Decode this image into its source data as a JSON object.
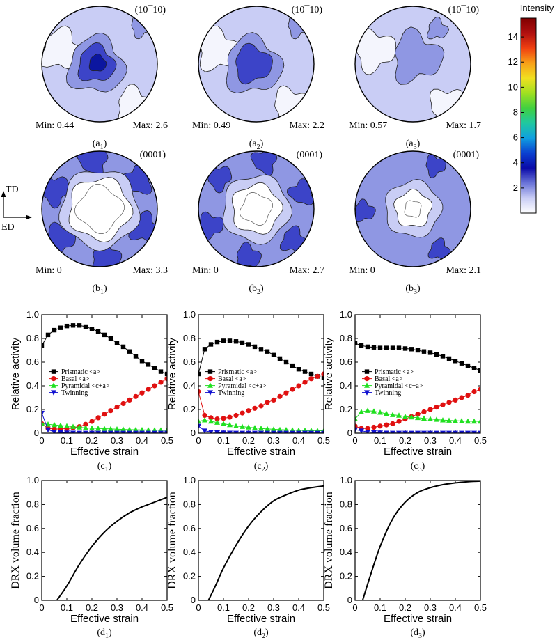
{
  "pole_figures": [
    {
      "label": "a",
      "sub": "1",
      "plane": "(10¯10)",
      "min": "Min: 0.44",
      "max": "Max: 2.6"
    },
    {
      "label": "a",
      "sub": "2",
      "plane": "(10¯10)",
      "min": "Min: 0.49",
      "max": "Max: 2.2"
    },
    {
      "label": "a",
      "sub": "3",
      "plane": "(10¯10)",
      "min": "Min: 0.57",
      "max": "Max: 1.7"
    },
    {
      "label": "b",
      "sub": "1",
      "plane": "(0001)",
      "min": "Min: 0",
      "max": "Max: 3.3"
    },
    {
      "label": "b",
      "sub": "2",
      "plane": "(0001)",
      "min": "Min: 0",
      "max": "Max: 2.7"
    },
    {
      "label": "b",
      "sub": "3",
      "plane": "(0001)",
      "min": "Min: 0",
      "max": "Max: 2.1"
    }
  ],
  "axes_indicator": {
    "td": "TD",
    "ed": "ED"
  },
  "colorbar": {
    "title": "Intensity",
    "ticks": [
      2,
      4,
      6,
      8,
      10,
      12,
      14
    ],
    "range": [
      0,
      15.5
    ],
    "colors": [
      "#ffffff",
      "#c9cdf5",
      "#6a74d8",
      "#0a0aa8",
      "#0a40d0",
      "#10a0e0",
      "#20c8a0",
      "#40d040",
      "#a0e020",
      "#f0e020",
      "#f8a018",
      "#f04010",
      "#b01010",
      "#800000"
    ]
  },
  "chart_data": [
    {
      "type": "line",
      "label": "c",
      "sub": "1",
      "xlabel": "Effective strain",
      "ylabel": "Relative activity",
      "xlim": [
        0,
        0.5
      ],
      "ylim": [
        0,
        1.0
      ],
      "xticks": [
        0,
        0.1,
        0.2,
        0.3,
        0.4,
        0.5
      ],
      "yticks": [
        0,
        0.2,
        0.4,
        0.6,
        0.8,
        1.0
      ],
      "x": [
        0,
        0.025,
        0.05,
        0.075,
        0.1,
        0.125,
        0.15,
        0.175,
        0.2,
        0.225,
        0.25,
        0.275,
        0.3,
        0.325,
        0.35,
        0.375,
        0.4,
        0.425,
        0.45,
        0.475,
        0.5
      ],
      "series": [
        {
          "name": "Prismatic <a>",
          "color": "#000000",
          "marker": "square",
          "values": [
            0.74,
            0.83,
            0.87,
            0.89,
            0.905,
            0.91,
            0.91,
            0.9,
            0.88,
            0.86,
            0.83,
            0.8,
            0.76,
            0.73,
            0.69,
            0.65,
            0.61,
            0.58,
            0.55,
            0.52,
            0.5
          ]
        },
        {
          "name": "Basal <a>",
          "color": "#e01010",
          "marker": "circle",
          "values": [
            0.08,
            0.04,
            0.035,
            0.035,
            0.04,
            0.045,
            0.055,
            0.075,
            0.1,
            0.13,
            0.16,
            0.19,
            0.22,
            0.25,
            0.28,
            0.31,
            0.34,
            0.37,
            0.4,
            0.43,
            0.46
          ]
        },
        {
          "name": "Pyramidal <c+a>",
          "color": "#20e020",
          "marker": "triangle-up",
          "values": [
            0.08,
            0.075,
            0.07,
            0.065,
            0.06,
            0.055,
            0.05,
            0.045,
            0.042,
            0.04,
            0.038,
            0.036,
            0.034,
            0.032,
            0.03,
            0.029,
            0.028,
            0.027,
            0.026,
            0.025,
            0.025
          ]
        },
        {
          "name": "Twinning",
          "color": "#1010d0",
          "marker": "triangle-down",
          "values": [
            0.17,
            0.03,
            0.01,
            0.005,
            0.003,
            0.002,
            0.001,
            0.001,
            0.001,
            0.001,
            0.001,
            0.001,
            0.001,
            0.001,
            0.001,
            0.001,
            0.001,
            0.001,
            0.001,
            0.001,
            0.001
          ]
        }
      ]
    },
    {
      "type": "line",
      "label": "c",
      "sub": "2",
      "xlabel": "Effective strain",
      "ylabel": "Relative activity",
      "xlim": [
        0,
        0.5
      ],
      "ylim": [
        0,
        1.0
      ],
      "xticks": [
        0,
        0.1,
        0.2,
        0.3,
        0.4,
        0.5
      ],
      "yticks": [
        0,
        0.2,
        0.4,
        0.6,
        0.8,
        1.0
      ],
      "x": [
        0,
        0.025,
        0.05,
        0.075,
        0.1,
        0.125,
        0.15,
        0.175,
        0.2,
        0.225,
        0.25,
        0.275,
        0.3,
        0.325,
        0.35,
        0.375,
        0.4,
        0.425,
        0.45,
        0.475,
        0.5
      ],
      "series": [
        {
          "name": "Prismatic <a>",
          "color": "#000000",
          "marker": "square",
          "values": [
            0.5,
            0.71,
            0.75,
            0.77,
            0.78,
            0.78,
            0.775,
            0.765,
            0.75,
            0.73,
            0.71,
            0.69,
            0.66,
            0.63,
            0.6,
            0.57,
            0.54,
            0.52,
            0.5,
            0.48,
            0.47
          ]
        },
        {
          "name": "Basal <a>",
          "color": "#e01010",
          "marker": "circle",
          "values": [
            0.35,
            0.15,
            0.13,
            0.12,
            0.125,
            0.135,
            0.15,
            0.17,
            0.19,
            0.21,
            0.23,
            0.26,
            0.28,
            0.31,
            0.34,
            0.37,
            0.4,
            0.43,
            0.46,
            0.48,
            0.5
          ]
        },
        {
          "name": "Pyramidal <c+a>",
          "color": "#20e020",
          "marker": "triangle-up",
          "values": [
            0.1,
            0.11,
            0.1,
            0.09,
            0.08,
            0.07,
            0.06,
            0.055,
            0.05,
            0.045,
            0.04,
            0.036,
            0.033,
            0.03,
            0.028,
            0.026,
            0.024,
            0.023,
            0.022,
            0.021,
            0.02
          ]
        },
        {
          "name": "Twinning",
          "color": "#1010d0",
          "marker": "triangle-down",
          "values": [
            0.06,
            0.02,
            0.01,
            0.005,
            0.003,
            0.002,
            0.001,
            0.001,
            0.001,
            0.001,
            0.001,
            0.001,
            0.001,
            0.001,
            0.001,
            0.001,
            0.001,
            0.001,
            0.001,
            0.001,
            0.001
          ]
        }
      ]
    },
    {
      "type": "line",
      "label": "c",
      "sub": "3",
      "xlabel": "Effective strain",
      "ylabel": "Relative activity",
      "xlim": [
        0,
        0.5
      ],
      "ylim": [
        0,
        1.0
      ],
      "xticks": [
        0,
        0.1,
        0.2,
        0.3,
        0.4,
        0.5
      ],
      "yticks": [
        0,
        0.2,
        0.4,
        0.6,
        0.8,
        1.0
      ],
      "x": [
        0,
        0.025,
        0.05,
        0.075,
        0.1,
        0.125,
        0.15,
        0.175,
        0.2,
        0.225,
        0.25,
        0.275,
        0.3,
        0.325,
        0.35,
        0.375,
        0.4,
        0.425,
        0.45,
        0.475,
        0.5
      ],
      "series": [
        {
          "name": "Prismatic <a>",
          "color": "#000000",
          "marker": "square",
          "values": [
            0.76,
            0.74,
            0.73,
            0.725,
            0.72,
            0.72,
            0.72,
            0.72,
            0.715,
            0.71,
            0.7,
            0.69,
            0.68,
            0.665,
            0.65,
            0.63,
            0.61,
            0.59,
            0.57,
            0.55,
            0.53
          ]
        },
        {
          "name": "Basal <a>",
          "color": "#e01010",
          "marker": "circle",
          "values": [
            0.06,
            0.04,
            0.04,
            0.05,
            0.06,
            0.07,
            0.08,
            0.1,
            0.12,
            0.14,
            0.16,
            0.18,
            0.2,
            0.22,
            0.24,
            0.26,
            0.28,
            0.3,
            0.32,
            0.35,
            0.37
          ]
        },
        {
          "name": "Pyramidal <c+a>",
          "color": "#20e020",
          "marker": "triangle-up",
          "values": [
            0.12,
            0.18,
            0.19,
            0.185,
            0.175,
            0.165,
            0.155,
            0.15,
            0.14,
            0.135,
            0.13,
            0.125,
            0.12,
            0.115,
            0.11,
            0.108,
            0.105,
            0.103,
            0.1,
            0.1,
            0.1
          ]
        },
        {
          "name": "Twinning",
          "color": "#1010d0",
          "marker": "triangle-down",
          "values": [
            0.03,
            0.02,
            0.01,
            0.005,
            0.003,
            0.002,
            0.001,
            0.001,
            0.001,
            0.001,
            0.001,
            0.001,
            0.001,
            0.001,
            0.001,
            0.001,
            0.001,
            0.001,
            0.001,
            0.001,
            0.001
          ]
        }
      ]
    },
    {
      "type": "line",
      "label": "d",
      "sub": "1",
      "xlabel": "Effective strain",
      "ylabel": "DRX volume fraction",
      "xlim": [
        0,
        0.5
      ],
      "ylim": [
        0,
        1.0
      ],
      "xticks": [
        0,
        0.1,
        0.2,
        0.3,
        0.4,
        0.5
      ],
      "yticks": [
        0,
        0.2,
        0.4,
        0.6,
        0.8,
        1.0
      ],
      "x": [
        0.06,
        0.1,
        0.15,
        0.2,
        0.25,
        0.3,
        0.35,
        0.4,
        0.45,
        0.5
      ],
      "series": [
        {
          "name": "",
          "color": "#000000",
          "values": [
            0,
            0.12,
            0.3,
            0.45,
            0.57,
            0.66,
            0.73,
            0.78,
            0.82,
            0.86
          ]
        }
      ]
    },
    {
      "type": "line",
      "label": "d",
      "sub": "2",
      "xlabel": "Effective strain",
      "ylabel": "DRX volume fraction",
      "xlim": [
        0,
        0.5
      ],
      "ylim": [
        0,
        1.0
      ],
      "xticks": [
        0,
        0.1,
        0.2,
        0.3,
        0.4,
        0.5
      ],
      "yticks": [
        0,
        0.2,
        0.4,
        0.6,
        0.8,
        1.0
      ],
      "x": [
        0.04,
        0.07,
        0.1,
        0.15,
        0.2,
        0.25,
        0.3,
        0.35,
        0.4,
        0.45,
        0.5
      ],
      "series": [
        {
          "name": "",
          "color": "#000000",
          "values": [
            0,
            0.13,
            0.27,
            0.46,
            0.62,
            0.74,
            0.83,
            0.88,
            0.92,
            0.94,
            0.955
          ]
        }
      ]
    },
    {
      "type": "line",
      "label": "d",
      "sub": "3",
      "xlabel": "Effective strain",
      "ylabel": "DRX volume fraction",
      "xlim": [
        0,
        0.5
      ],
      "ylim": [
        0,
        1.0
      ],
      "xticks": [
        0,
        0.1,
        0.2,
        0.3,
        0.4,
        0.5
      ],
      "yticks": [
        0,
        0.2,
        0.4,
        0.6,
        0.8,
        1.0
      ],
      "x": [
        0.03,
        0.06,
        0.1,
        0.15,
        0.2,
        0.25,
        0.3,
        0.35,
        0.4,
        0.45,
        0.5
      ],
      "series": [
        {
          "name": "",
          "color": "#000000",
          "values": [
            0,
            0.2,
            0.45,
            0.68,
            0.82,
            0.9,
            0.94,
            0.965,
            0.98,
            0.99,
            0.995
          ]
        }
      ]
    }
  ]
}
